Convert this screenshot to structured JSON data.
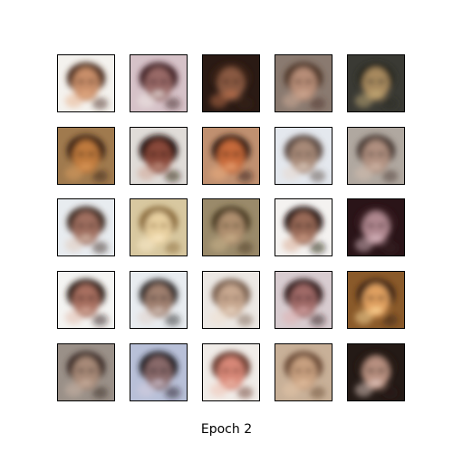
{
  "figure": {
    "caption": "Epoch 2",
    "grid": {
      "rows": 5,
      "cols": 5
    },
    "samples": [
      {
        "bg": "#f4f2ee",
        "face": "#c98f6a",
        "hair": "#4a2c1e",
        "accent": "#e8b08a"
      },
      {
        "bg": "#d6c2c8",
        "face": "#9a6a68",
        "hair": "#3c1e22",
        "accent": "#f2ece8"
      },
      {
        "bg": "#2a1a14",
        "face": "#8a5a42",
        "hair": "#3a2016",
        "accent": "#c0704a"
      },
      {
        "bg": "#8a7a70",
        "face": "#b88e78",
        "hair": "#4e3428",
        "accent": "#d4b09a"
      },
      {
        "bg": "#3a3a34",
        "face": "#a88a5e",
        "hair": "#2a2a22",
        "accent": "#c8b07a"
      },
      {
        "bg": "#a07a4e",
        "face": "#c07a3e",
        "hair": "#3a2414",
        "accent": "#e0a060"
      },
      {
        "bg": "#e0dcd8",
        "face": "#8a4a3a",
        "hair": "#1e0e0a",
        "accent": "#d0a090"
      },
      {
        "bg": "#c09070",
        "face": "#c86a3a",
        "hair": "#2e1a12",
        "accent": "#f0b080"
      },
      {
        "bg": "#e4e8ee",
        "face": "#a88a78",
        "hair": "#5a4a42",
        "accent": "#e8d8cc"
      },
      {
        "bg": "#b0a8a0",
        "face": "#b09080",
        "hair": "#4a3a34",
        "accent": "#d8c0b0"
      },
      {
        "bg": "#e8ecf0",
        "face": "#a07060",
        "hair": "#3e2a22",
        "accent": "#e0c8b8"
      },
      {
        "bg": "#d8c8a0",
        "face": "#e8d0a0",
        "hair": "#8a6a3a",
        "accent": "#fff0d0"
      },
      {
        "bg": "#9a8a6a",
        "face": "#b09070",
        "hair": "#4a3a24",
        "accent": "#d0b890"
      },
      {
        "bg": "#f4f2f0",
        "face": "#9a6a58",
        "hair": "#1a100c",
        "accent": "#d8a890"
      },
      {
        "bg": "#2a1418",
        "face": "#b08890",
        "hair": "#3a1e22",
        "accent": "#e0c0c8"
      },
      {
        "bg": "#f4f4f2",
        "face": "#a87060",
        "hair": "#2a1a16",
        "accent": "#e0b8a8"
      },
      {
        "bg": "#e8ecf0",
        "face": "#a08070",
        "hair": "#2e2a2a",
        "accent": "#e0d0c8"
      },
      {
        "bg": "#ece8e4",
        "face": "#c8a890",
        "hair": "#7a6050",
        "accent": "#f0e0d0"
      },
      {
        "bg": "#d8ccd0",
        "face": "#a06a68",
        "hair": "#2a1618",
        "accent": "#e0b0b0"
      },
      {
        "bg": "#8a5a2a",
        "face": "#e0a060",
        "hair": "#3a2212",
        "accent": "#ffe0a0"
      },
      {
        "bg": "#9a9088",
        "face": "#a88a78",
        "hair": "#3a2c26",
        "accent": "#d0b8a8"
      },
      {
        "bg": "#b8c0d8",
        "face": "#8a6a6a",
        "hair": "#1e1a22",
        "accent": "#d8d0e0"
      },
      {
        "bg": "#f0ece8",
        "face": "#d88878",
        "hair": "#6a3a2e",
        "accent": "#f0c0b0"
      },
      {
        "bg": "#c8b098",
        "face": "#c8a080",
        "hair": "#6a4a34",
        "accent": "#e8c8a8"
      },
      {
        "bg": "#241a16",
        "face": "#b89080",
        "hair": "#2a1c16",
        "accent": "#e8d0c8"
      }
    ]
  }
}
